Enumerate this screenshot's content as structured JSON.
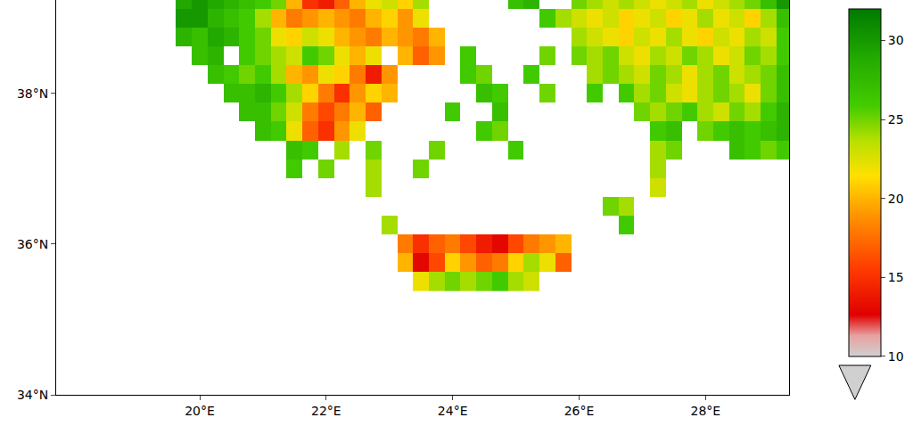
{
  "chart_data": {
    "type": "heatmap",
    "x": [
      19.5,
      19.75,
      20.0,
      20.25,
      20.5,
      20.75,
      21.0,
      21.25,
      21.5,
      21.75,
      22.0,
      22.25,
      22.5,
      22.75,
      23.0,
      23.25,
      23.5,
      23.75,
      24.0,
      24.25,
      24.5,
      24.75,
      25.0,
      25.25,
      25.5,
      25.75,
      26.0,
      26.25,
      26.5,
      26.75,
      27.0,
      27.25,
      27.5,
      27.75,
      28.0,
      28.25,
      28.5,
      28.75,
      29.0,
      29.25
    ],
    "y": [
      35.5,
      35.75,
      36.0,
      36.25,
      36.5,
      36.75,
      37.0,
      37.25,
      37.5,
      37.75,
      38.0,
      38.25,
      38.5,
      38.75,
      39.0,
      39.25
    ],
    "z": [
      [
        null,
        null,
        null,
        null,
        null,
        null,
        null,
        null,
        null,
        null,
        null,
        null,
        null,
        null,
        null,
        null,
        22,
        24,
        25,
        24,
        25,
        26,
        24,
        23,
        null,
        null,
        null,
        null,
        null,
        null,
        null,
        null,
        null,
        null,
        null,
        null,
        null,
        null,
        null,
        null
      ],
      [
        null,
        null,
        null,
        null,
        null,
        null,
        null,
        null,
        null,
        null,
        null,
        null,
        null,
        null,
        null,
        20,
        13,
        16,
        21,
        19,
        17,
        18,
        21,
        24,
        22,
        17,
        null,
        null,
        null,
        null,
        null,
        null,
        null,
        null,
        null,
        null,
        null,
        null,
        null,
        null
      ],
      [
        null,
        null,
        null,
        null,
        null,
        null,
        null,
        null,
        null,
        null,
        null,
        null,
        null,
        null,
        null,
        18,
        15,
        17,
        18,
        16,
        14,
        13,
        16,
        18,
        19,
        20,
        null,
        null,
        null,
        null,
        null,
        null,
        null,
        null,
        null,
        null,
        null,
        null,
        null,
        null
      ],
      [
        null,
        null,
        null,
        null,
        null,
        null,
        null,
        null,
        null,
        null,
        null,
        null,
        null,
        null,
        24,
        null,
        null,
        null,
        null,
        null,
        null,
        null,
        null,
        null,
        null,
        null,
        null,
        null,
        null,
        26,
        null,
        null,
        null,
        null,
        null,
        null,
        null,
        null,
        null,
        null
      ],
      [
        null,
        null,
        null,
        null,
        null,
        null,
        null,
        null,
        null,
        null,
        null,
        null,
        null,
        null,
        null,
        null,
        null,
        null,
        null,
        null,
        null,
        null,
        null,
        null,
        null,
        null,
        null,
        null,
        25,
        24,
        null,
        null,
        null,
        null,
        null,
        null,
        null,
        null,
        null,
        null
      ],
      [
        null,
        null,
        null,
        null,
        null,
        null,
        null,
        null,
        null,
        null,
        null,
        null,
        null,
        24,
        null,
        null,
        null,
        null,
        null,
        null,
        null,
        null,
        null,
        null,
        null,
        null,
        null,
        null,
        null,
        null,
        null,
        23,
        null,
        null,
        null,
        null,
        null,
        null,
        null,
        null
      ],
      [
        null,
        null,
        null,
        null,
        null,
        null,
        null,
        null,
        26,
        null,
        25,
        null,
        null,
        24,
        null,
        null,
        25,
        null,
        null,
        null,
        null,
        null,
        null,
        null,
        null,
        null,
        null,
        null,
        null,
        null,
        null,
        24,
        null,
        null,
        null,
        null,
        null,
        null,
        null,
        null
      ],
      [
        null,
        null,
        null,
        null,
        null,
        null,
        null,
        null,
        27,
        26,
        null,
        24,
        null,
        25,
        null,
        null,
        null,
        25,
        null,
        null,
        null,
        null,
        26,
        null,
        null,
        null,
        null,
        null,
        null,
        null,
        null,
        24,
        25,
        null,
        null,
        null,
        27,
        26,
        25,
        26
      ],
      [
        null,
        null,
        null,
        null,
        null,
        null,
        27,
        26,
        22,
        17,
        15,
        19,
        22,
        null,
        null,
        null,
        null,
        null,
        null,
        null,
        26,
        25,
        null,
        null,
        null,
        null,
        null,
        null,
        null,
        null,
        null,
        26,
        27,
        null,
        25,
        26,
        27,
        26,
        27,
        28
      ],
      [
        null,
        null,
        null,
        null,
        null,
        27,
        27,
        25,
        23,
        18,
        16,
        18,
        20,
        17,
        null,
        null,
        null,
        null,
        26,
        null,
        null,
        27,
        null,
        null,
        null,
        null,
        null,
        null,
        null,
        null,
        25,
        24,
        25,
        26,
        24,
        23,
        25,
        24,
        26,
        28
      ],
      [
        null,
        null,
        null,
        null,
        27,
        27,
        28,
        26,
        24,
        21,
        18,
        15,
        19,
        21,
        20,
        null,
        null,
        null,
        null,
        null,
        27,
        26,
        null,
        null,
        25,
        null,
        null,
        26,
        null,
        26,
        24,
        25,
        23,
        22,
        24,
        25,
        24,
        22,
        25,
        27
      ],
      [
        null,
        null,
        null,
        27,
        26,
        25,
        26,
        24,
        20,
        19,
        22,
        21,
        18,
        14,
        19,
        null,
        null,
        null,
        null,
        26,
        25,
        null,
        null,
        26,
        null,
        null,
        null,
        24,
        25,
        24,
        23,
        25,
        24,
        22,
        24,
        25,
        23,
        24,
        25,
        27
      ],
      [
        null,
        null,
        27,
        28,
        null,
        26,
        25,
        24,
        23,
        26,
        25,
        22,
        20,
        22,
        null,
        20,
        17,
        19,
        null,
        26,
        null,
        null,
        null,
        null,
        25,
        null,
        25,
        24,
        25,
        23,
        22,
        24,
        23,
        25,
        24,
        22,
        23,
        25,
        24,
        26
      ],
      [
        null,
        28,
        27,
        29,
        28,
        26,
        25,
        22,
        21,
        23,
        22,
        20,
        19,
        18,
        20,
        19,
        18,
        20,
        null,
        null,
        null,
        null,
        null,
        null,
        null,
        null,
        24,
        23,
        22,
        21,
        23,
        22,
        24,
        22,
        21,
        23,
        22,
        24,
        23,
        26
      ],
      [
        null,
        30,
        30,
        28,
        27,
        26,
        24,
        20,
        18,
        19,
        20,
        19,
        18,
        20,
        21,
        19,
        22,
        null,
        null,
        null,
        null,
        null,
        null,
        null,
        26,
        24,
        23,
        22,
        23,
        21,
        22,
        23,
        21,
        22,
        24,
        22,
        23,
        21,
        24,
        27
      ],
      [
        null,
        29,
        30,
        29,
        28,
        27,
        26,
        25,
        20,
        15,
        14,
        17,
        20,
        22,
        23,
        21,
        24,
        null,
        null,
        null,
        null,
        null,
        27,
        28,
        null,
        null,
        25,
        24,
        23,
        24,
        23,
        22,
        23,
        24,
        22,
        23,
        24,
        25,
        27,
        30
      ]
    ],
    "xlim": [
      17.73,
      29.32
    ],
    "ylim": [
      34,
      39.24
    ],
    "xticks": [
      {
        "value": 20,
        "label": "20°E"
      },
      {
        "value": 22,
        "label": "22°E"
      },
      {
        "value": 24,
        "label": "24°E"
      },
      {
        "value": 26,
        "label": "26°E"
      },
      {
        "value": 28,
        "label": "28°E"
      }
    ],
    "yticks": [
      {
        "value": 34,
        "label": "34°N"
      },
      {
        "value": 36,
        "label": "36°N"
      },
      {
        "value": 38,
        "label": "38°N"
      }
    ],
    "zlim": [
      10,
      32
    ],
    "zticks": [
      10,
      15,
      20,
      25,
      30
    ]
  }
}
